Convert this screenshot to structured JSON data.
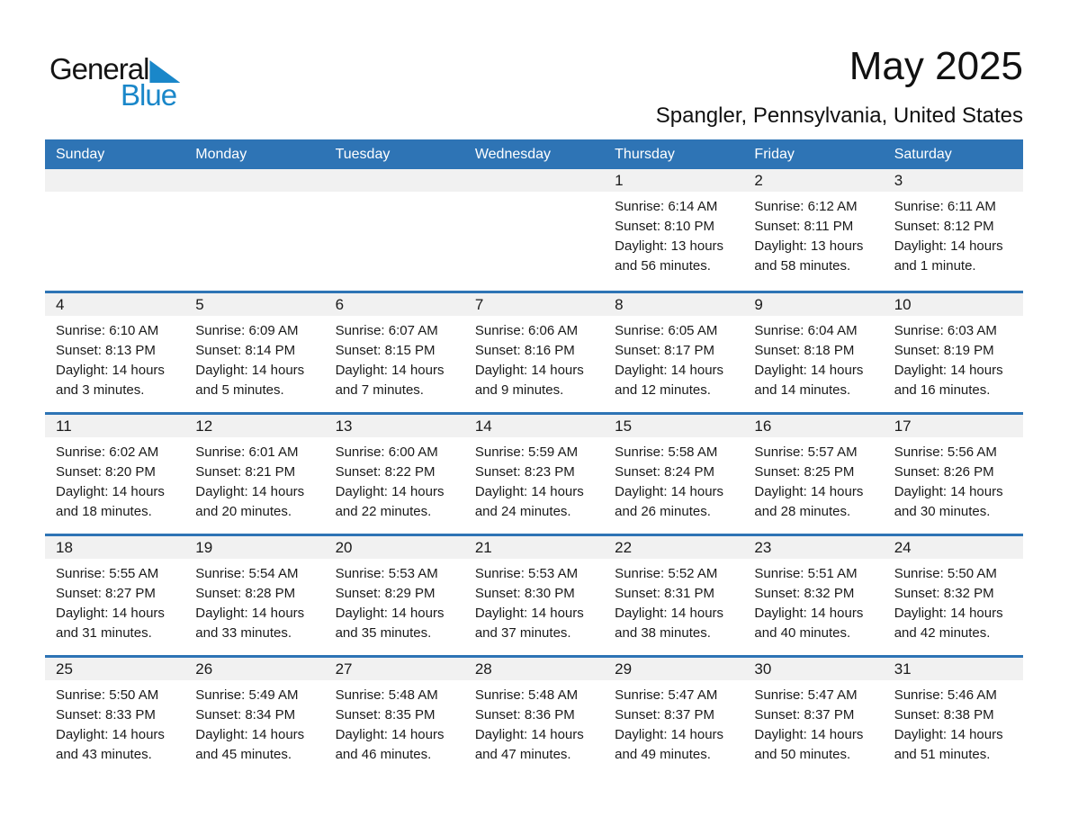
{
  "logo": {
    "line1": "General",
    "line2": "Blue",
    "triangle_icon": "lower-left-triangle"
  },
  "header": {
    "title": "May 2025",
    "subtitle": "Spangler, Pennsylvania, United States"
  },
  "colors": {
    "header_blue": "#2E74B5",
    "logo_blue": "#1A87C9",
    "day_band_gray": "#F1F1F1",
    "text": "#1a1a1a"
  },
  "calendar": {
    "weekdays": [
      "Sunday",
      "Monday",
      "Tuesday",
      "Wednesday",
      "Thursday",
      "Friday",
      "Saturday"
    ],
    "weeks": [
      [
        null,
        null,
        null,
        null,
        {
          "day": "1",
          "sunrise": "Sunrise: 6:14 AM",
          "sunset": "Sunset: 8:10 PM",
          "daylight1": "Daylight: 13 hours",
          "daylight2": "and 56 minutes."
        },
        {
          "day": "2",
          "sunrise": "Sunrise: 6:12 AM",
          "sunset": "Sunset: 8:11 PM",
          "daylight1": "Daylight: 13 hours",
          "daylight2": "and 58 minutes."
        },
        {
          "day": "3",
          "sunrise": "Sunrise: 6:11 AM",
          "sunset": "Sunset: 8:12 PM",
          "daylight1": "Daylight: 14 hours",
          "daylight2": "and 1 minute."
        }
      ],
      [
        {
          "day": "4",
          "sunrise": "Sunrise: 6:10 AM",
          "sunset": "Sunset: 8:13 PM",
          "daylight1": "Daylight: 14 hours",
          "daylight2": "and 3 minutes."
        },
        {
          "day": "5",
          "sunrise": "Sunrise: 6:09 AM",
          "sunset": "Sunset: 8:14 PM",
          "daylight1": "Daylight: 14 hours",
          "daylight2": "and 5 minutes."
        },
        {
          "day": "6",
          "sunrise": "Sunrise: 6:07 AM",
          "sunset": "Sunset: 8:15 PM",
          "daylight1": "Daylight: 14 hours",
          "daylight2": "and 7 minutes."
        },
        {
          "day": "7",
          "sunrise": "Sunrise: 6:06 AM",
          "sunset": "Sunset: 8:16 PM",
          "daylight1": "Daylight: 14 hours",
          "daylight2": "and 9 minutes."
        },
        {
          "day": "8",
          "sunrise": "Sunrise: 6:05 AM",
          "sunset": "Sunset: 8:17 PM",
          "daylight1": "Daylight: 14 hours",
          "daylight2": "and 12 minutes."
        },
        {
          "day": "9",
          "sunrise": "Sunrise: 6:04 AM",
          "sunset": "Sunset: 8:18 PM",
          "daylight1": "Daylight: 14 hours",
          "daylight2": "and 14 minutes."
        },
        {
          "day": "10",
          "sunrise": "Sunrise: 6:03 AM",
          "sunset": "Sunset: 8:19 PM",
          "daylight1": "Daylight: 14 hours",
          "daylight2": "and 16 minutes."
        }
      ],
      [
        {
          "day": "11",
          "sunrise": "Sunrise: 6:02 AM",
          "sunset": "Sunset: 8:20 PM",
          "daylight1": "Daylight: 14 hours",
          "daylight2": "and 18 minutes."
        },
        {
          "day": "12",
          "sunrise": "Sunrise: 6:01 AM",
          "sunset": "Sunset: 8:21 PM",
          "daylight1": "Daylight: 14 hours",
          "daylight2": "and 20 minutes."
        },
        {
          "day": "13",
          "sunrise": "Sunrise: 6:00 AM",
          "sunset": "Sunset: 8:22 PM",
          "daylight1": "Daylight: 14 hours",
          "daylight2": "and 22 minutes."
        },
        {
          "day": "14",
          "sunrise": "Sunrise: 5:59 AM",
          "sunset": "Sunset: 8:23 PM",
          "daylight1": "Daylight: 14 hours",
          "daylight2": "and 24 minutes."
        },
        {
          "day": "15",
          "sunrise": "Sunrise: 5:58 AM",
          "sunset": "Sunset: 8:24 PM",
          "daylight1": "Daylight: 14 hours",
          "daylight2": "and 26 minutes."
        },
        {
          "day": "16",
          "sunrise": "Sunrise: 5:57 AM",
          "sunset": "Sunset: 8:25 PM",
          "daylight1": "Daylight: 14 hours",
          "daylight2": "and 28 minutes."
        },
        {
          "day": "17",
          "sunrise": "Sunrise: 5:56 AM",
          "sunset": "Sunset: 8:26 PM",
          "daylight1": "Daylight: 14 hours",
          "daylight2": "and 30 minutes."
        }
      ],
      [
        {
          "day": "18",
          "sunrise": "Sunrise: 5:55 AM",
          "sunset": "Sunset: 8:27 PM",
          "daylight1": "Daylight: 14 hours",
          "daylight2": "and 31 minutes."
        },
        {
          "day": "19",
          "sunrise": "Sunrise: 5:54 AM",
          "sunset": "Sunset: 8:28 PM",
          "daylight1": "Daylight: 14 hours",
          "daylight2": "and 33 minutes."
        },
        {
          "day": "20",
          "sunrise": "Sunrise: 5:53 AM",
          "sunset": "Sunset: 8:29 PM",
          "daylight1": "Daylight: 14 hours",
          "daylight2": "and 35 minutes."
        },
        {
          "day": "21",
          "sunrise": "Sunrise: 5:53 AM",
          "sunset": "Sunset: 8:30 PM",
          "daylight1": "Daylight: 14 hours",
          "daylight2": "and 37 minutes."
        },
        {
          "day": "22",
          "sunrise": "Sunrise: 5:52 AM",
          "sunset": "Sunset: 8:31 PM",
          "daylight1": "Daylight: 14 hours",
          "daylight2": "and 38 minutes."
        },
        {
          "day": "23",
          "sunrise": "Sunrise: 5:51 AM",
          "sunset": "Sunset: 8:32 PM",
          "daylight1": "Daylight: 14 hours",
          "daylight2": "and 40 minutes."
        },
        {
          "day": "24",
          "sunrise": "Sunrise: 5:50 AM",
          "sunset": "Sunset: 8:32 PM",
          "daylight1": "Daylight: 14 hours",
          "daylight2": "and 42 minutes."
        }
      ],
      [
        {
          "day": "25",
          "sunrise": "Sunrise: 5:50 AM",
          "sunset": "Sunset: 8:33 PM",
          "daylight1": "Daylight: 14 hours",
          "daylight2": "and 43 minutes."
        },
        {
          "day": "26",
          "sunrise": "Sunrise: 5:49 AM",
          "sunset": "Sunset: 8:34 PM",
          "daylight1": "Daylight: 14 hours",
          "daylight2": "and 45 minutes."
        },
        {
          "day": "27",
          "sunrise": "Sunrise: 5:48 AM",
          "sunset": "Sunset: 8:35 PM",
          "daylight1": "Daylight: 14 hours",
          "daylight2": "and 46 minutes."
        },
        {
          "day": "28",
          "sunrise": "Sunrise: 5:48 AM",
          "sunset": "Sunset: 8:36 PM",
          "daylight1": "Daylight: 14 hours",
          "daylight2": "and 47 minutes."
        },
        {
          "day": "29",
          "sunrise": "Sunrise: 5:47 AM",
          "sunset": "Sunset: 8:37 PM",
          "daylight1": "Daylight: 14 hours",
          "daylight2": "and 49 minutes."
        },
        {
          "day": "30",
          "sunrise": "Sunrise: 5:47 AM",
          "sunset": "Sunset: 8:37 PM",
          "daylight1": "Daylight: 14 hours",
          "daylight2": "and 50 minutes."
        },
        {
          "day": "31",
          "sunrise": "Sunrise: 5:46 AM",
          "sunset": "Sunset: 8:38 PM",
          "daylight1": "Daylight: 14 hours",
          "daylight2": "and 51 minutes."
        }
      ]
    ]
  }
}
